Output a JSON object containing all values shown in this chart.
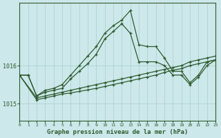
{
  "title": "Graphe pression niveau de la mer (hPa)",
  "bg_color": "#cce8ea",
  "line_color": "#2d5a2d",
  "grid_color": "#a8cece",
  "xlim": [
    0,
    23
  ],
  "ylim": [
    1014.55,
    1017.65
  ],
  "yticks": [
    1015,
    1016
  ],
  "xticks": [
    0,
    1,
    2,
    3,
    4,
    5,
    6,
    7,
    8,
    9,
    10,
    11,
    12,
    13,
    14,
    15,
    16,
    17,
    18,
    19,
    20,
    21,
    22,
    23
  ],
  "lines": [
    {
      "x": [
        0,
        1,
        2,
        3,
        4,
        5,
        6,
        7,
        8,
        9,
        10,
        11,
        12,
        13,
        14,
        15,
        16,
        17,
        18,
        19,
        20,
        21,
        22,
        23
      ],
      "y": [
        1015.75,
        1015.75,
        1015.2,
        1015.35,
        1015.4,
        1015.5,
        1015.75,
        1016.0,
        1016.25,
        1016.5,
        1016.85,
        1017.05,
        1017.2,
        1017.45,
        1016.55,
        1016.5,
        1016.5,
        1016.2,
        1015.85,
        1015.85,
        1015.55,
        1015.75,
        1016.1,
        1016.15
      ]
    },
    {
      "x": [
        0,
        1,
        2,
        3,
        4,
        5,
        6,
        7,
        8,
        9,
        10,
        11,
        12,
        13,
        14,
        15,
        16,
        17,
        18,
        19,
        20,
        21,
        22,
        23
      ],
      "y": [
        1015.75,
        1015.75,
        1015.2,
        1015.3,
        1015.35,
        1015.4,
        1015.65,
        1015.85,
        1016.05,
        1016.3,
        1016.7,
        1016.9,
        1017.1,
        1016.85,
        1016.1,
        1016.1,
        1016.1,
        1016.0,
        1015.75,
        1015.75,
        1015.5,
        1015.7,
        1016.0,
        1016.15
      ]
    },
    {
      "x": [
        0,
        2,
        3,
        4,
        5,
        6,
        7,
        8,
        9,
        10,
        11,
        12,
        13,
        14,
        15,
        16,
        17,
        18,
        19,
        20,
        21,
        22,
        23
      ],
      "y": [
        1015.75,
        1015.15,
        1015.2,
        1015.25,
        1015.3,
        1015.35,
        1015.4,
        1015.45,
        1015.5,
        1015.55,
        1015.6,
        1015.65,
        1015.7,
        1015.75,
        1015.8,
        1015.85,
        1015.9,
        1015.95,
        1016.0,
        1016.1,
        1016.15,
        1016.2,
        1016.25
      ]
    },
    {
      "x": [
        0,
        2,
        3,
        4,
        5,
        6,
        7,
        8,
        9,
        10,
        11,
        12,
        13,
        14,
        15,
        16,
        17,
        18,
        19,
        20,
        21,
        22,
        23
      ],
      "y": [
        1015.75,
        1015.1,
        1015.15,
        1015.2,
        1015.25,
        1015.28,
        1015.32,
        1015.36,
        1015.4,
        1015.45,
        1015.5,
        1015.55,
        1015.6,
        1015.65,
        1015.7,
        1015.75,
        1015.82,
        1015.88,
        1015.92,
        1016.0,
        1016.05,
        1016.1,
        1016.15
      ]
    }
  ]
}
